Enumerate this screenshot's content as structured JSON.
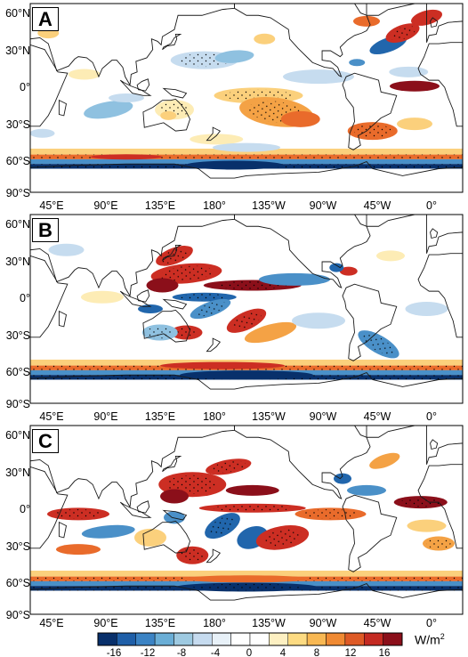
{
  "panels": [
    {
      "label": "A",
      "pattern": "a"
    },
    {
      "label": "B",
      "pattern": "b"
    },
    {
      "label": "C",
      "pattern": "c"
    }
  ],
  "latitude_labels": [
    "60°N",
    "30°N",
    "0°",
    "30°S",
    "60°S",
    "90°S"
  ],
  "longitude_labels": [
    "45°E",
    "90°E",
    "135°E",
    "180°",
    "135°W",
    "90°W",
    "45°W",
    "0°"
  ],
  "colorbar": {
    "ticks": [
      "-16",
      "-12",
      "-8",
      "-4",
      "0",
      "4",
      "8",
      "12",
      "16"
    ],
    "unit_base": "W/m",
    "unit_exp": "2",
    "colors": [
      "#08306b",
      "#1f5fa8",
      "#3b83c4",
      "#6aaed6",
      "#9ecae1",
      "#c6dbef",
      "#e8f1f8",
      "#ffffff",
      "#ffffff",
      "#fdf0c2",
      "#fddb82",
      "#f8b853",
      "#f08a33",
      "#de5a26",
      "#c42a22",
      "#8b0f1a"
    ]
  }
}
